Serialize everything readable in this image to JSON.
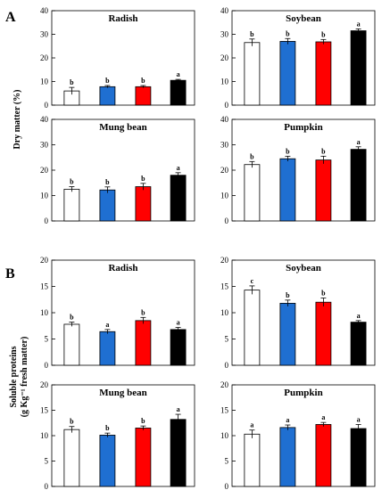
{
  "figure": {
    "panel_labels": [
      "A",
      "B"
    ],
    "ylabels": {
      "A": [
        "Dry matter  (%)"
      ],
      "B": [
        "Soluble proteins",
        "(g Kg⁻¹ fresh matter)"
      ]
    }
  },
  "colors": {
    "bar_fills": [
      "#ffffff",
      "#1f6fd1",
      "#ff0000",
      "#000000"
    ],
    "outline": "#000000"
  },
  "chart_data": [
    {
      "type": "bar",
      "group": "A",
      "title": "Radish",
      "ylim": [
        0,
        40
      ],
      "yticks": [
        0,
        10,
        20,
        30,
        40
      ],
      "values": [
        6.0,
        7.8,
        7.8,
        10.5
      ],
      "errors": [
        1.5,
        0.5,
        0.5,
        0.4
      ],
      "letters": [
        "b",
        "b",
        "b",
        "a"
      ]
    },
    {
      "type": "bar",
      "group": "A",
      "title": "Soybean",
      "ylim": [
        0,
        40
      ],
      "yticks": [
        0,
        10,
        20,
        30,
        40
      ],
      "values": [
        26.5,
        27.0,
        26.8,
        31.5
      ],
      "errors": [
        1.5,
        1.2,
        1.0,
        0.8
      ],
      "letters": [
        "b",
        "b",
        "b",
        "a"
      ]
    },
    {
      "type": "bar",
      "group": "A",
      "title": "Mung bean",
      "ylim": [
        0,
        40
      ],
      "yticks": [
        0,
        10,
        20,
        30,
        40
      ],
      "values": [
        12.5,
        12.2,
        13.5,
        18.0
      ],
      "errors": [
        1.0,
        1.2,
        1.3,
        1.0
      ],
      "letters": [
        "b",
        "b",
        "b",
        "a"
      ]
    },
    {
      "type": "bar",
      "group": "A",
      "title": "Pumpkin",
      "ylim": [
        0,
        40
      ],
      "yticks": [
        0,
        10,
        20,
        30,
        40
      ],
      "values": [
        22.2,
        24.5,
        24.0,
        28.2
      ],
      "errors": [
        1.2,
        1.0,
        1.5,
        1.0
      ],
      "letters": [
        "b",
        "b",
        "b",
        "a"
      ]
    },
    {
      "type": "bar",
      "group": "B",
      "title": "Radish",
      "ylim": [
        0,
        20
      ],
      "yticks": [
        0,
        5,
        10,
        15,
        20
      ],
      "values": [
        7.8,
        6.4,
        8.5,
        6.8
      ],
      "errors": [
        0.4,
        0.4,
        0.6,
        0.4
      ],
      "letters": [
        "b",
        "a",
        "b",
        "a"
      ]
    },
    {
      "type": "bar",
      "group": "B",
      "title": "Soybean",
      "ylim": [
        0,
        20
      ],
      "yticks": [
        0,
        5,
        10,
        15,
        20
      ],
      "values": [
        14.3,
        11.8,
        12.0,
        8.2
      ],
      "errors": [
        0.8,
        0.6,
        0.8,
        0.3
      ],
      "letters": [
        "c",
        "b",
        "b",
        "a"
      ]
    },
    {
      "type": "bar",
      "group": "B",
      "title": "Mung bean",
      "ylim": [
        0,
        20
      ],
      "yticks": [
        0,
        5,
        10,
        15,
        20
      ],
      "values": [
        11.2,
        10.1,
        11.5,
        13.2
      ],
      "errors": [
        0.6,
        0.4,
        0.4,
        1.0
      ],
      "letters": [
        "b",
        "b",
        "b",
        "a"
      ]
    },
    {
      "type": "bar",
      "group": "B",
      "title": "Pumpkin",
      "ylim": [
        0,
        20
      ],
      "yticks": [
        0,
        5,
        10,
        15,
        20
      ],
      "values": [
        10.3,
        11.6,
        12.2,
        11.4
      ],
      "errors": [
        0.8,
        0.5,
        0.4,
        0.8
      ],
      "letters": [
        "a",
        "a",
        "a",
        "a"
      ]
    }
  ]
}
